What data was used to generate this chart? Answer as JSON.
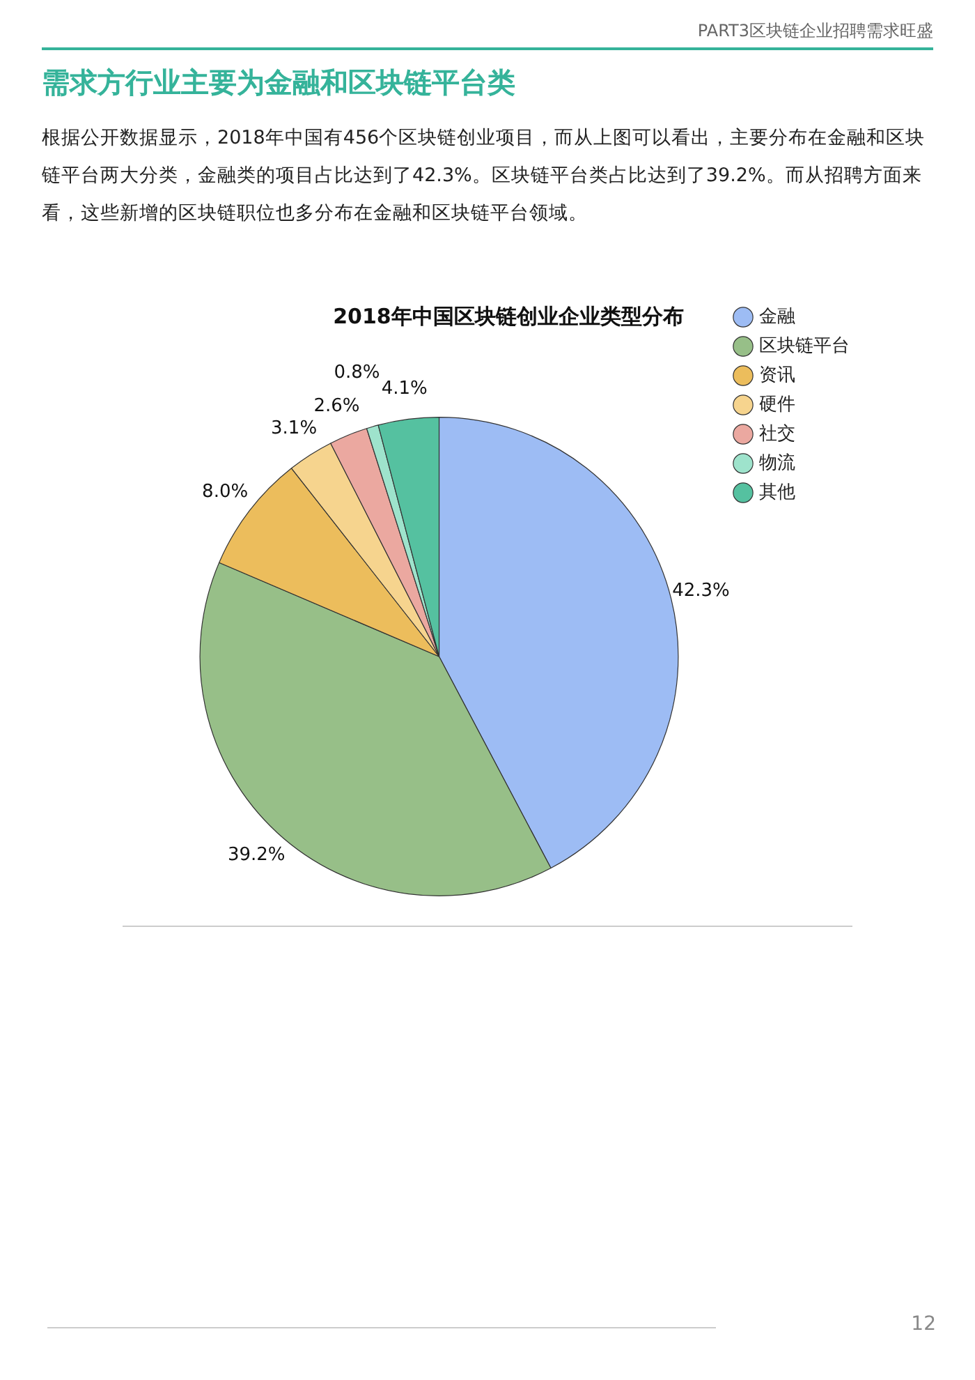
{
  "chart_data": {
    "type": "pie",
    "title": "2018年中国区块链创业企业类型分布",
    "categories": [
      "金融",
      "区块链平台",
      "资讯",
      "硬件",
      "社交",
      "物流",
      "其他"
    ],
    "values": [
      42.3,
      39.2,
      8.0,
      3.1,
      2.6,
      0.8,
      4.1
    ],
    "colors": [
      "#9dbcf4",
      "#97bf88",
      "#ecbd5c",
      "#f6d48e",
      "#eba8a0",
      "#9ee3cc",
      "#55c1a0"
    ],
    "value_labels": [
      "42.3%",
      "39.2%",
      "8.0%",
      "3.1%",
      "2.6%",
      "0.8%",
      "4.1%"
    ],
    "legend": "top right",
    "annotations": [
      "PART3区块链企业招聘需求旺盛",
      "需求方行业主要为金融和区块链平台类",
      "根据公开数据显示，2018年中国有456个区块链创业项目，而从上图可以看出，主要分布在金融和区块链平台两大分类，金融类的项目占比达到了42.3%。区块链平台类占比达到了39.2%。而从招聘方面来看，这些新增的区块链职位也多分布在金融和区块链平台领域。",
      "12"
    ]
  }
}
